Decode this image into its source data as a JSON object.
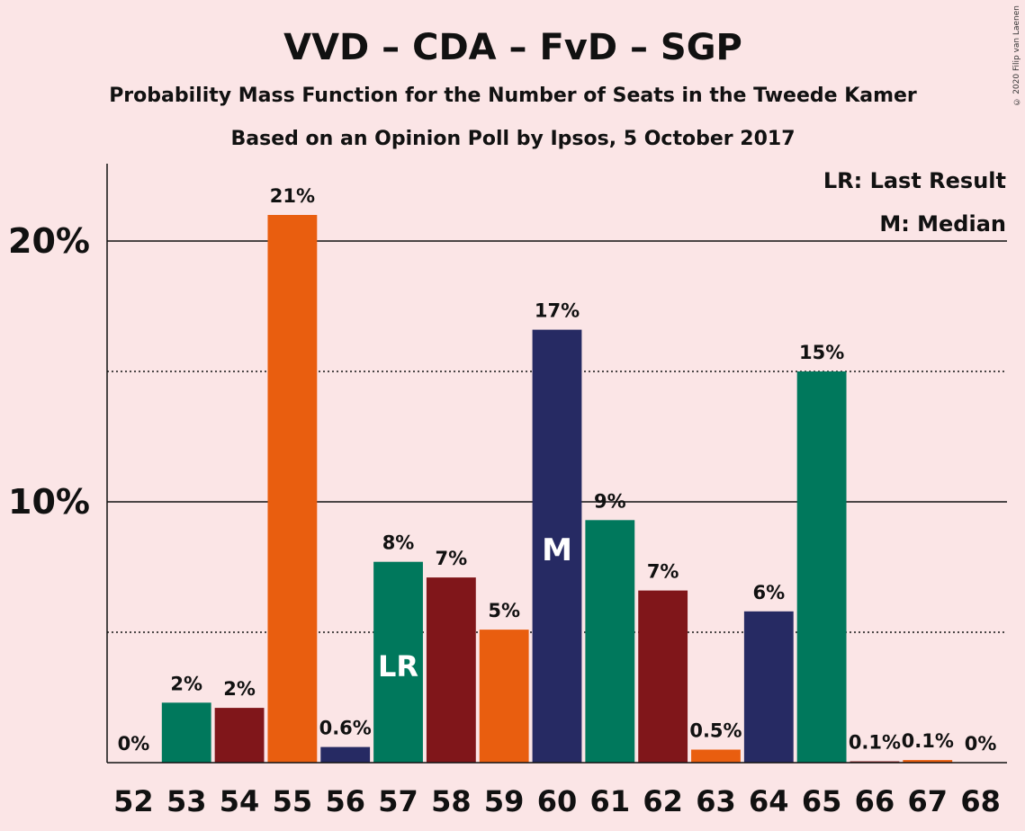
{
  "chart_data": {
    "type": "bar",
    "title": "VVD – CDA – FvD – SGP",
    "subtitle": "Probability Mass Function for the Number of Seats in the Tweede Kamer",
    "subtitle2": "Based on an Opinion Poll by Ipsos, 5 October 2017",
    "legend": {
      "lr": "LR: Last Result",
      "m": "M: Median"
    },
    "categories": [
      "52",
      "53",
      "54",
      "55",
      "56",
      "57",
      "58",
      "59",
      "60",
      "61",
      "62",
      "63",
      "64",
      "65",
      "66",
      "67",
      "68"
    ],
    "values": [
      0,
      2.3,
      2.1,
      21.0,
      0.6,
      7.7,
      7.1,
      5.1,
      16.6,
      9.3,
      6.6,
      0.5,
      5.8,
      15.0,
      0.05,
      0.1,
      0
    ],
    "value_labels": [
      "0%",
      "2%",
      "2%",
      "21%",
      "0.6%",
      "8%",
      "7%",
      "5%",
      "17%",
      "9%",
      "7%",
      "0.5%",
      "6%",
      "15%",
      "0.1%",
      "0.1%",
      "0%"
    ],
    "bar_colors": [
      "#00785c",
      "#00785c",
      "#80161a",
      "#e95e0f",
      "#262a63",
      "#00785c",
      "#80161a",
      "#e95e0f",
      "#262a63",
      "#00785c",
      "#80161a",
      "#e95e0f",
      "#262a63",
      "#00785c",
      "#80161a",
      "#e95e0f",
      "#262a63"
    ],
    "last_result_index": 5,
    "last_result_label": "LR",
    "median_index": 8,
    "median_label": "M",
    "ylim": [
      0,
      23
    ],
    "yticks": [
      10,
      20
    ],
    "ytick_labels": [
      "10%",
      "20%"
    ],
    "minor_gridlines": [
      5,
      15
    ],
    "legend_position": "top-right"
  },
  "copyright": "© 2020 Filip van Laenen"
}
